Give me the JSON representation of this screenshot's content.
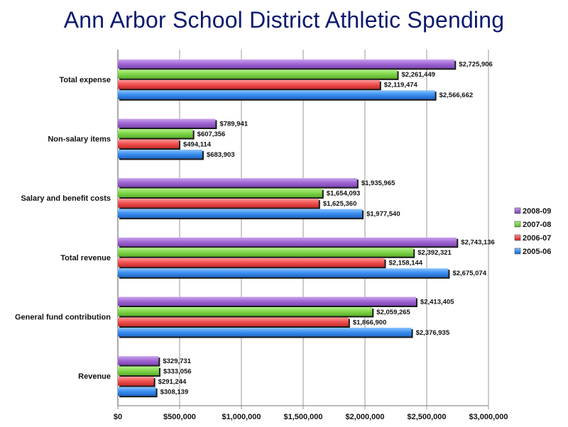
{
  "title": "Ann Arbor School District Athletic Spending",
  "chart_data": {
    "type": "bar",
    "orientation": "horizontal",
    "title": "Ann Arbor School District Athletic Spending",
    "xlabel": "",
    "ylabel": "",
    "xlim": [
      0,
      3000000
    ],
    "grid": true,
    "legend_position": "right",
    "x_ticks": [
      "$0",
      "$500,000",
      "$1,000,000",
      "$1,500,000",
      "$2,000,000",
      "$2,500,000",
      "$3,000,000"
    ],
    "categories": [
      "Total expense",
      "Non-salary items",
      "Salary and benefit costs",
      "Total revenue",
      "General fund contribution",
      "Revenue"
    ],
    "series": [
      {
        "name": "2008-09",
        "color": "#a066d3",
        "values": [
          2725906,
          789941,
          1935965,
          2743136,
          2413405,
          329731
        ],
        "labels": [
          "$2,725,906",
          "$789,941",
          "$1,935,965",
          "$2,743,136",
          "$2,413,405",
          "$329,731"
        ]
      },
      {
        "name": "2007-08",
        "color": "#80d64a",
        "values": [
          2261449,
          607356,
          1654093,
          2392321,
          2059265,
          333056
        ],
        "labels": [
          "$2,261,449",
          "$607,356",
          "$1,654,093",
          "$2,392,321",
          "$2,059,265",
          "$333,056"
        ]
      },
      {
        "name": "2006-07",
        "color": "#f05050",
        "values": [
          2119474,
          494114,
          1625360,
          2158144,
          1866900,
          291244
        ],
        "labels": [
          "$2,119,474",
          "$494,114",
          "$1,625,360",
          "$2,158,144",
          "$1,866,900",
          "$291,244"
        ]
      },
      {
        "name": "2005-06",
        "color": "#3b8ff0",
        "values": [
          2566662,
          683903,
          1977540,
          2675074,
          2376935,
          308139
        ],
        "labels": [
          "$2,566,662",
          "$683,903",
          "$1,977,540",
          "$2,675,074",
          "$2,376,935",
          "$308,139"
        ]
      }
    ]
  }
}
